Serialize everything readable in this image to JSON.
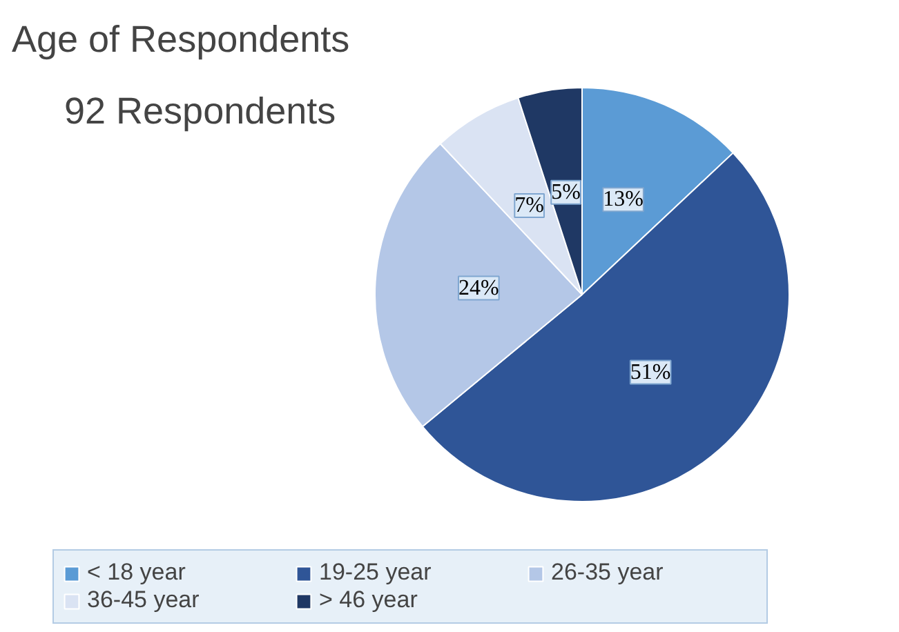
{
  "chart_data": {
    "type": "pie",
    "title": "Age of Respondents",
    "subtitle": "92 Respondents",
    "categories": [
      "< 18 year",
      "19-25 year",
      "26-35 year",
      "36-45 year",
      "> 46 year"
    ],
    "values": [
      13,
      51,
      24,
      7,
      5
    ],
    "value_labels": [
      "13%",
      "51%",
      "24%",
      "7%",
      "5%"
    ],
    "colors": [
      "#5b9bd5",
      "#2f5597",
      "#b4c7e7",
      "#dae3f3",
      "#1f3864"
    ],
    "legend": "bottom"
  }
}
